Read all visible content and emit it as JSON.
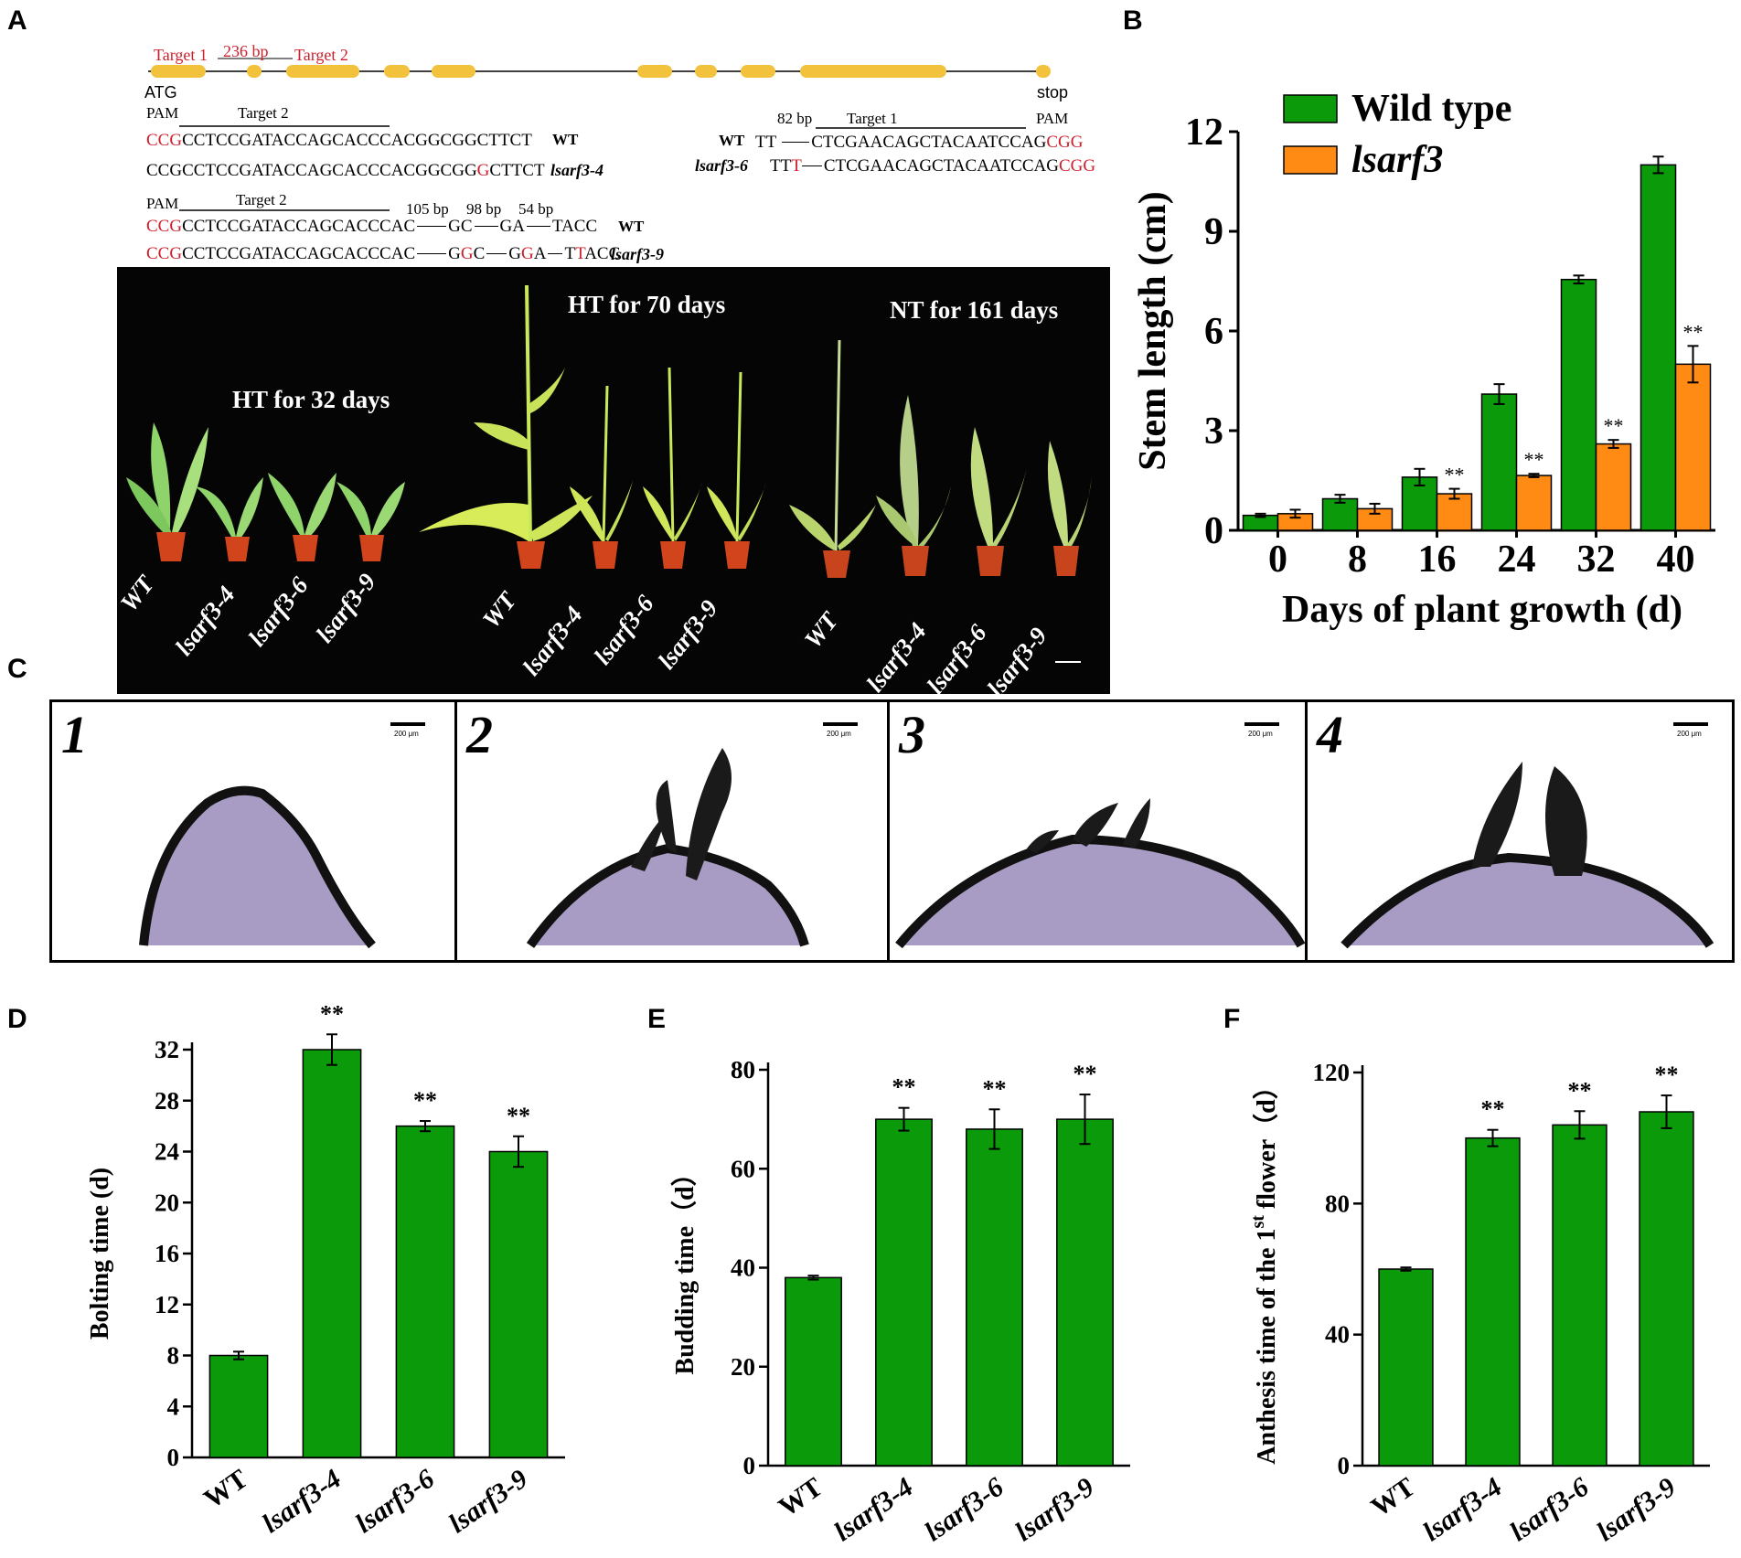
{
  "panels": {
    "A": "A",
    "B": "B",
    "C": "C",
    "D": "D",
    "E": "E",
    "F": "F"
  },
  "gene_map": {
    "target1": "Target 1",
    "target2": "Target 2",
    "distance": "236 bp",
    "start": "ATG",
    "stop": "stop"
  },
  "seqs": {
    "pam": "PAM",
    "target2": "Target 2",
    "target1": "Target 1",
    "bp82": "82 bp",
    "bp105": "105 bp",
    "bp98": "98 bp",
    "bp54": "54 bp",
    "wt": "WT",
    "lsarf3_4": "lsarf3-4",
    "lsarf3_6": "lsarf3-6",
    "lsarf3_9": "lsarf3-9",
    "row1_pam": "CCG",
    "row1_rest": "CCTCCGATACCAGCACCCACGGCGGCTTCT",
    "row2_a": "CCGCCTCCGATACCAGCACCCACGGCGG",
    "row2_ins": "G",
    "row2_b": "CTTCT",
    "t1_wt_pre": "TT",
    "t1_seq": "CTCGAACAGCTACAATCCAG",
    "t1_pam": "CGG",
    "t1_mut_pre": "TT",
    "t1_mut_ins": "T",
    "row3_pam": "CCG",
    "row3_rest": "CCTCCGATACCAGCACCCAC",
    "row3_tail_a": "GC",
    "row3_tail_b": "GA",
    "row3_tail_c": "TACC",
    "row4_pam": "CCG",
    "row4_rest": "CCTCCGATACCAGCACCCAC",
    "row4_g1": "G",
    "row4_g1r": "G",
    "row4_c": "C",
    "row4_g2": "G",
    "row4_g2r": "G",
    "row4_a": "A",
    "row4_t": "T",
    "row4_tr": "T",
    "row4_acc": "ACC"
  },
  "photo": {
    "group1_title": "HT for 32 days",
    "group2_title": "HT for 70 days",
    "group3_title": "NT for 161 days",
    "labels": [
      "WT",
      "lsarf3-4",
      "lsarf3-6",
      "lsarf3-9"
    ]
  },
  "micro": {
    "numbers": [
      "1",
      "2",
      "3",
      "4"
    ],
    "scale": "200 μm"
  },
  "chart_data": [
    {
      "id": "B",
      "type": "bar",
      "title": "",
      "xlabel": "Days of plant growth (d)",
      "ylabel": "Stem length (cm)",
      "categories": [
        "0",
        "8",
        "16",
        "24",
        "32",
        "40"
      ],
      "series": [
        {
          "name": "Wild type",
          "color": "#0a9a0a",
          "values": [
            0.45,
            0.95,
            1.6,
            4.1,
            7.55,
            11.0
          ],
          "errors": [
            0.05,
            0.12,
            0.25,
            0.3,
            0.12,
            0.25
          ]
        },
        {
          "name": "lsarf3",
          "color": "#ff8a14",
          "values": [
            0.5,
            0.65,
            1.1,
            1.65,
            2.6,
            5.0
          ],
          "errors": [
            0.12,
            0.15,
            0.15,
            0.05,
            0.12,
            0.55
          ]
        }
      ],
      "significance": [
        "",
        "",
        "**",
        "**",
        "**",
        "**"
      ],
      "ylim": [
        0,
        12
      ],
      "yticks": [
        0,
        3,
        6,
        9,
        12
      ]
    },
    {
      "id": "D",
      "type": "bar",
      "xlabel": "",
      "ylabel": "Bolting time (d)",
      "categories": [
        "WT",
        "lsarf3-4",
        "lsarf3-6",
        "lsarf3-9"
      ],
      "values": [
        8,
        32,
        26,
        24
      ],
      "errors": [
        0.3,
        1.2,
        0.4,
        1.2
      ],
      "significance": [
        "",
        "**",
        "**",
        "**"
      ],
      "ylim": [
        0,
        32
      ],
      "yticks": [
        0,
        4,
        8,
        12,
        16,
        20,
        24,
        28,
        32
      ],
      "color": "#0a9a0a"
    },
    {
      "id": "E",
      "type": "bar",
      "xlabel": "",
      "ylabel": "Budding time（d）",
      "categories": [
        "WT",
        "lsarf3-4",
        "lsarf3-6",
        "lsarf3-9"
      ],
      "values": [
        38,
        70,
        68,
        70
      ],
      "errors": [
        0.4,
        2.3,
        4.0,
        5.0
      ],
      "significance": [
        "",
        "**",
        "**",
        "**"
      ],
      "ylim": [
        0,
        80
      ],
      "yticks": [
        0,
        20,
        40,
        60,
        80
      ],
      "color": "#0a9a0a"
    },
    {
      "id": "F",
      "type": "bar",
      "xlabel": "",
      "ylabel_pre": "Anthesis time of the 1",
      "ylabel_sup": "st",
      "ylabel_post": " flower（d）",
      "categories": [
        "WT",
        "lsarf3-4",
        "lsarf3-6",
        "lsarf3-9"
      ],
      "values": [
        60,
        100,
        104,
        108
      ],
      "errors": [
        0.5,
        2.5,
        4.2,
        5.0
      ],
      "significance": [
        "",
        "**",
        "**",
        "**"
      ],
      "ylim": [
        0,
        120
      ],
      "yticks": [
        0,
        40,
        80,
        120
      ],
      "color": "#0a9a0a"
    }
  ]
}
